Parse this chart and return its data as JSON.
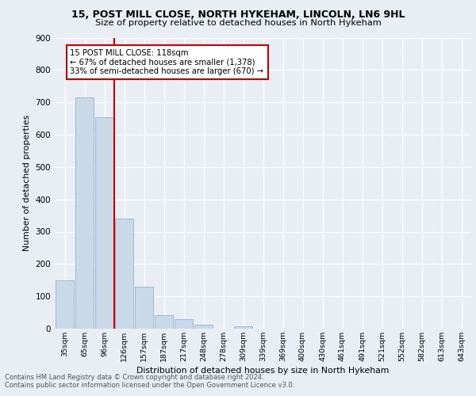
{
  "title1": "15, POST MILL CLOSE, NORTH HYKEHAM, LINCOLN, LN6 9HL",
  "title2": "Size of property relative to detached houses in North Hykeham",
  "xlabel": "Distribution of detached houses by size in North Hykeham",
  "ylabel": "Number of detached properties",
  "footnote1": "Contains HM Land Registry data © Crown copyright and database right 2024.",
  "footnote2": "Contains public sector information licensed under the Open Government Licence v3.0.",
  "categories": [
    "35sqm",
    "65sqm",
    "96sqm",
    "126sqm",
    "157sqm",
    "187sqm",
    "217sqm",
    "248sqm",
    "278sqm",
    "309sqm",
    "339sqm",
    "369sqm",
    "400sqm",
    "430sqm",
    "461sqm",
    "491sqm",
    "521sqm",
    "552sqm",
    "582sqm",
    "613sqm",
    "643sqm"
  ],
  "bar_values": [
    150,
    715,
    655,
    340,
    130,
    42,
    30,
    13,
    0,
    8,
    0,
    0,
    0,
    0,
    0,
    0,
    0,
    0,
    0,
    0,
    0
  ],
  "bar_color": "#c9d9e8",
  "bar_edge_color": "#a0b8d0",
  "vline_color": "#cc0000",
  "annotation_text": "15 POST MILL CLOSE: 118sqm\n← 67% of detached houses are smaller (1,378)\n33% of semi-detached houses are larger (670) →",
  "annotation_box_color": "#ffffff",
  "annotation_box_edge": "#cc0000",
  "ylim": [
    0,
    900
  ],
  "yticks": [
    0,
    100,
    200,
    300,
    400,
    500,
    600,
    700,
    800,
    900
  ],
  "background_color": "#e8eef4",
  "plot_bg_color": "#e8eef4"
}
